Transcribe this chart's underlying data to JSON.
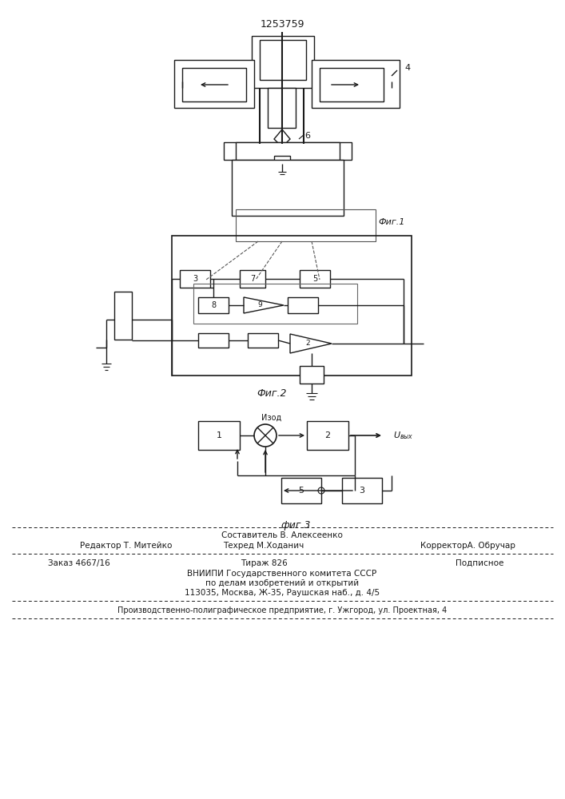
{
  "patent_number": "1253759",
  "fig1_label": "Фиг.1",
  "fig2_label": "Фиг.2",
  "fig3_label": "фиг.3",
  "footer_line1": "Составитель В. Алексеенко",
  "footer_editor": "Редактор Т. Митейко",
  "footer_techred": "Техред М.Ходанич",
  "footer_corrector": "КорректорА. Обручар",
  "footer_order": "Заказ 4667/16",
  "footer_tirazh": "Тираж 826",
  "footer_podpisnoe": "Подписное",
  "footer_vniipii": "ВНИИПИ Государственного комитета СССР",
  "footer_po": "по делам изобретений и открытий",
  "footer_address": "113035, Москва, Ж-35, Раушская наб., д. 4/5",
  "footer_predpr": "Производственно-полиграфическое предприятие, г. Ужгород, ул. Проектная, 4",
  "bg_color": "#ffffff",
  "line_color": "#1a1a1a"
}
